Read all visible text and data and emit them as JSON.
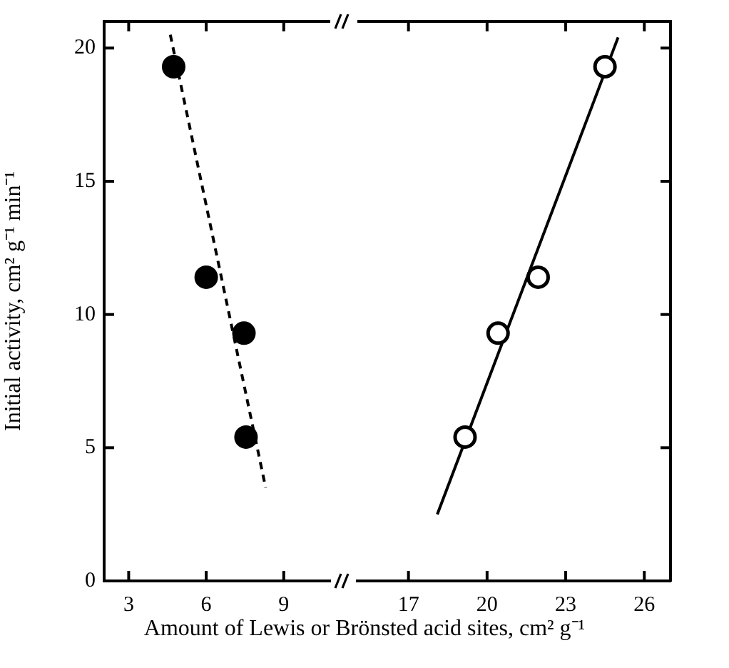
{
  "chart_data": [
    {
      "type": "scatter",
      "ylabel": "Initial activity, cm² g⁻¹ min⁻¹",
      "xlabel": "Amount of Lewis or Brönsted acid sites, cm² g⁻¹",
      "xlim": [
        2.05,
        10.8
      ],
      "xticks": [
        3,
        6,
        9
      ],
      "ylim": [
        0,
        21
      ],
      "yticks": [
        0,
        5,
        10,
        15,
        20
      ],
      "grid": false,
      "series": [
        {
          "type": "scatter",
          "color": "#000000",
          "marker": "circle",
          "x": [
            4.74,
            6.0,
            7.46,
            7.54
          ],
          "values": [
            19.3,
            11.4,
            9.3,
            5.4
          ]
        },
        {
          "type": "line",
          "color": "#000000",
          "marker": "none",
          "line_style": "dashed",
          "x": [
            4.61,
            8.3
          ],
          "values": [
            20.5,
            3.5
          ]
        }
      ]
    },
    {
      "type": "scatter",
      "xlim": [
        15.05,
        27
      ],
      "xticks": [
        17,
        20,
        23,
        26
      ],
      "ylim": [
        0,
        21
      ],
      "yticks": [
        0,
        5,
        10,
        15,
        20
      ],
      "tick_labels": "x",
      "grid": false,
      "series": [
        {
          "type": "scatter",
          "color": "#000000",
          "marker": "circle",
          "x": [
            19.16,
            20.42,
            21.95,
            24.5
          ],
          "values": [
            5.4,
            9.3,
            11.4,
            19.3
          ]
        },
        {
          "type": "line",
          "color": "#000000",
          "marker": "none",
          "line_style": "solid",
          "x": [
            18.1,
            25.0
          ],
          "values": [
            2.5,
            20.4
          ]
        }
      ]
    }
  ]
}
